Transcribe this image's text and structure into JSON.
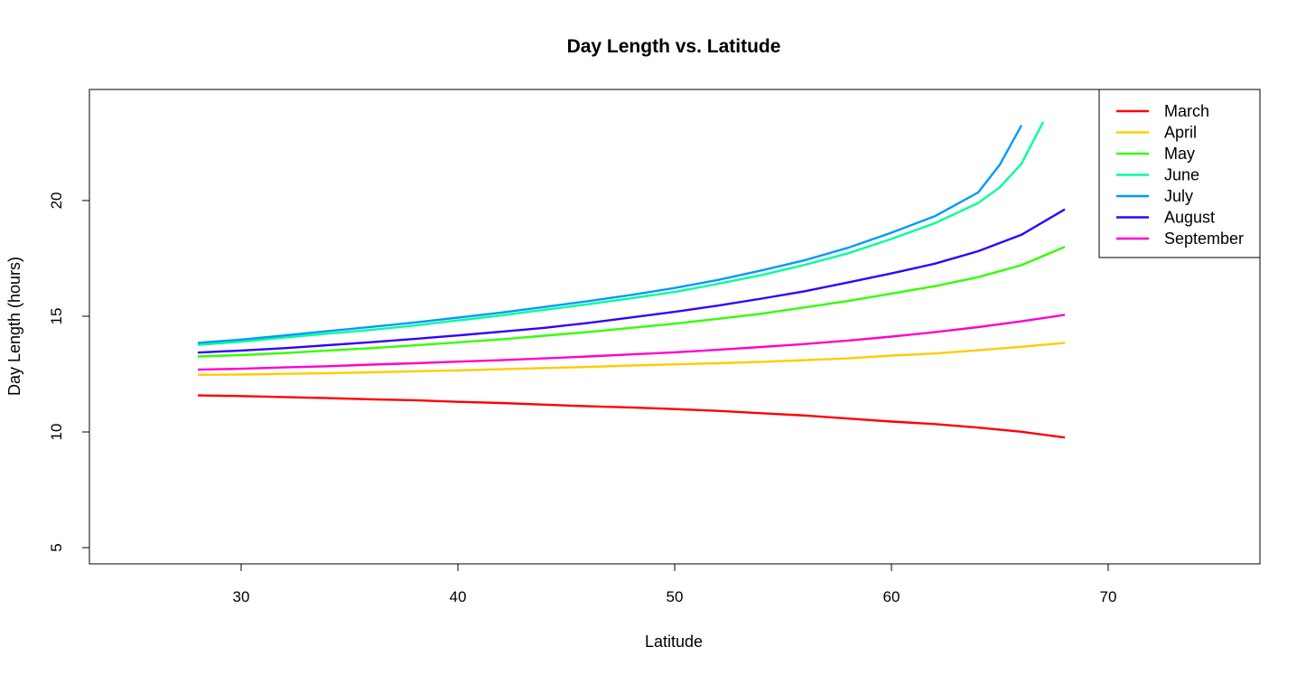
{
  "chart_data": {
    "type": "line",
    "title": "Day Length vs. Latitude",
    "xlabel": "Latitude",
    "ylabel": "Day Length (hours)",
    "xlim": [
      23,
      77
    ],
    "ylim": [
      4.3,
      24.8
    ],
    "x_ticks": [
      30,
      40,
      50,
      60,
      70
    ],
    "y_ticks": [
      5,
      10,
      15,
      20
    ],
    "grid": false,
    "legend_position": "top-right",
    "series": [
      {
        "name": "March",
        "color": "#ff0000",
        "x": [
          28,
          30,
          32,
          34,
          36,
          38,
          40,
          42,
          44,
          46,
          48,
          50,
          52,
          54,
          56,
          58,
          60,
          62,
          64,
          66,
          68
        ],
        "y": [
          11.58,
          11.55,
          11.51,
          11.46,
          11.41,
          11.37,
          11.3,
          11.25,
          11.18,
          11.11,
          11.06,
          10.99,
          10.91,
          10.81,
          10.71,
          10.58,
          10.45,
          10.34,
          10.19,
          10.01,
          9.76
        ]
      },
      {
        "name": "April",
        "color": "#ffcc00",
        "x": [
          28,
          30,
          32,
          34,
          36,
          38,
          40,
          42,
          44,
          46,
          48,
          50,
          52,
          54,
          56,
          58,
          60,
          62,
          64,
          66,
          68
        ],
        "y": [
          12.47,
          12.48,
          12.51,
          12.54,
          12.58,
          12.62,
          12.66,
          12.71,
          12.76,
          12.81,
          12.87,
          12.92,
          12.97,
          13.03,
          13.1,
          13.18,
          13.3,
          13.39,
          13.53,
          13.68,
          13.85
        ]
      },
      {
        "name": "May",
        "color": "#33ff00",
        "x": [
          28,
          30,
          32,
          34,
          36,
          38,
          40,
          42,
          44,
          46,
          48,
          50,
          52,
          54,
          56,
          58,
          60,
          62,
          64,
          66,
          68
        ],
        "y": [
          13.26,
          13.32,
          13.41,
          13.52,
          13.62,
          13.74,
          13.87,
          14.0,
          14.16,
          14.32,
          14.5,
          14.68,
          14.89,
          15.11,
          15.38,
          15.66,
          15.98,
          16.3,
          16.69,
          17.21,
          18.0
        ]
      },
      {
        "name": "June",
        "color": "#00ff99",
        "x": [
          28,
          30,
          32,
          34,
          36,
          38,
          40,
          42,
          44,
          46,
          48,
          50,
          52,
          54,
          56,
          58,
          60,
          62,
          64,
          65,
          66,
          67
        ],
        "y": [
          13.76,
          13.9,
          14.08,
          14.25,
          14.41,
          14.6,
          14.82,
          15.04,
          15.28,
          15.52,
          15.78,
          16.05,
          16.4,
          16.78,
          17.22,
          17.72,
          18.34,
          19.02,
          19.89,
          20.57,
          21.59,
          23.4
        ]
      },
      {
        "name": "July",
        "color": "#0099ff",
        "x": [
          28,
          30,
          32,
          34,
          36,
          38,
          40,
          42,
          44,
          46,
          48,
          50,
          52,
          54,
          56,
          58,
          60,
          62,
          64,
          65,
          66
        ],
        "y": [
          13.85,
          13.99,
          14.17,
          14.36,
          14.54,
          14.73,
          14.94,
          15.16,
          15.4,
          15.65,
          15.92,
          16.22,
          16.57,
          16.98,
          17.42,
          17.96,
          18.61,
          19.32,
          20.35,
          21.55,
          23.25
        ]
      },
      {
        "name": "August",
        "color": "#3300ff",
        "x": [
          28,
          30,
          32,
          34,
          36,
          38,
          40,
          42,
          44,
          46,
          48,
          50,
          52,
          54,
          56,
          58,
          60,
          62,
          64,
          66,
          68
        ],
        "y": [
          13.43,
          13.52,
          13.62,
          13.75,
          13.88,
          14.02,
          14.17,
          14.33,
          14.5,
          14.71,
          14.95,
          15.19,
          15.46,
          15.76,
          16.08,
          16.46,
          16.85,
          17.27,
          17.81,
          18.52,
          19.62
        ]
      },
      {
        "name": "September",
        "color": "#ff00cc",
        "x": [
          28,
          30,
          32,
          34,
          36,
          38,
          40,
          42,
          44,
          46,
          48,
          50,
          52,
          54,
          56,
          58,
          60,
          62,
          64,
          66,
          68
        ],
        "y": [
          12.69,
          12.73,
          12.79,
          12.84,
          12.91,
          12.97,
          13.04,
          13.1,
          13.18,
          13.26,
          13.35,
          13.44,
          13.55,
          13.67,
          13.8,
          13.95,
          14.12,
          14.31,
          14.53,
          14.78,
          15.06
        ]
      }
    ]
  }
}
